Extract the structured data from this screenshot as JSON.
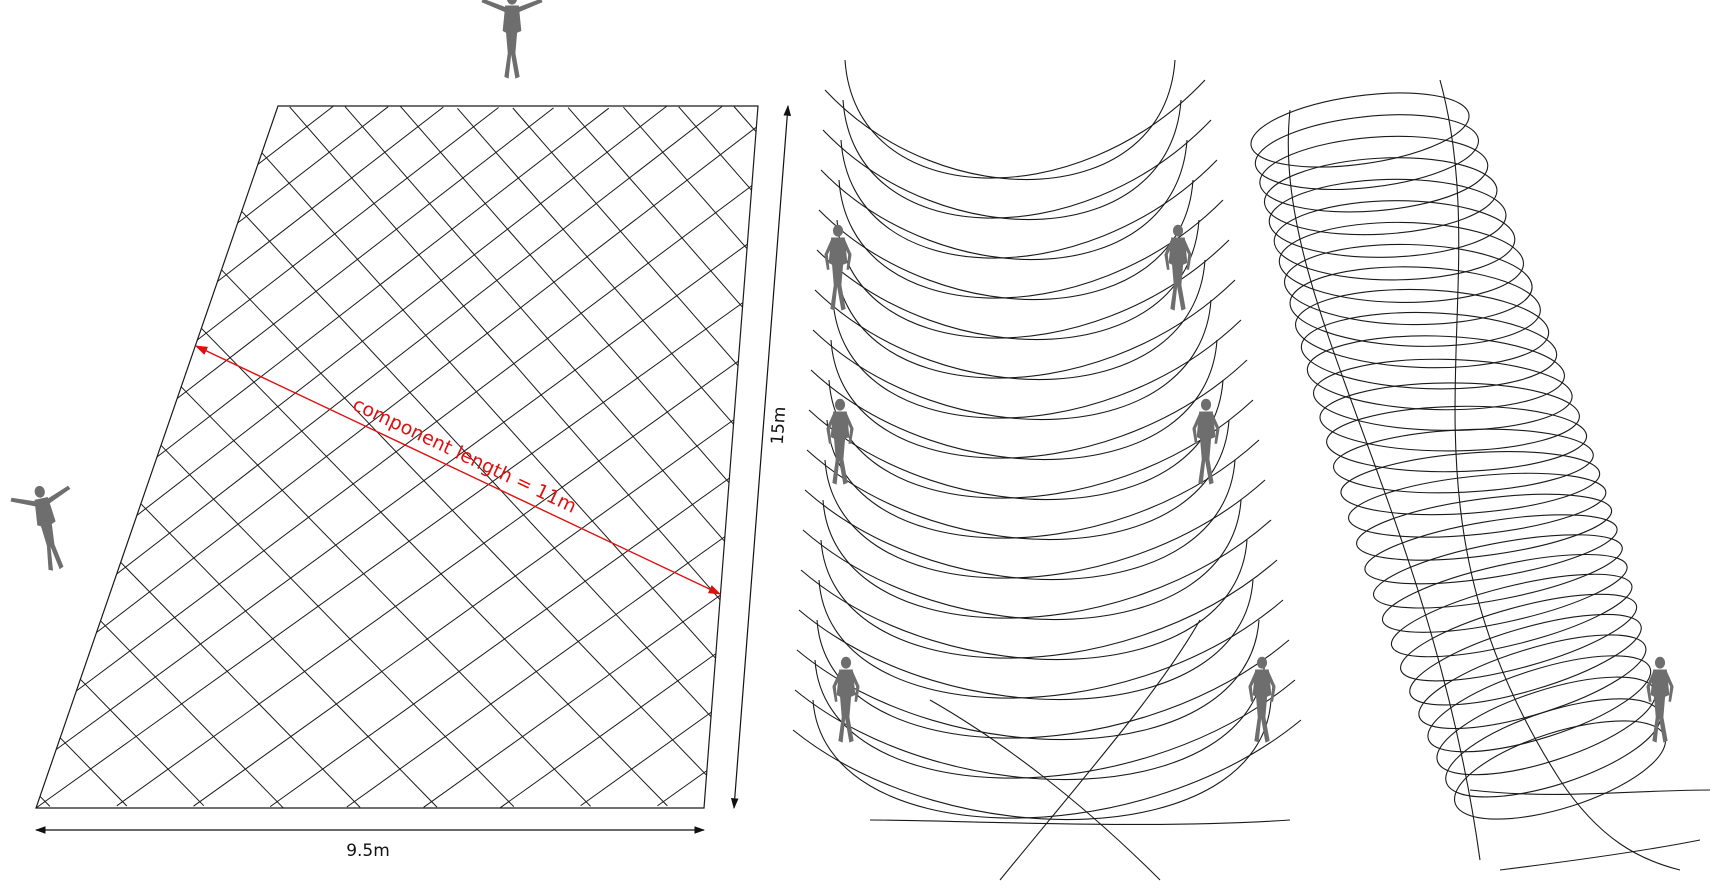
{
  "panels": {
    "flat_grid": {
      "width_label": "9.5m",
      "height_label": "15m",
      "component_label": "component length = 11m",
      "accent_color": "#e01010",
      "line_color": "#1a1a1a"
    },
    "bent_shell": {
      "line_color": "#1a1a1a"
    },
    "twisted_tube": {
      "line_color": "#1a1a1a"
    }
  },
  "human_figures": {
    "icon": "human-scale-figure-icon",
    "fill_color": "#6e6e6e"
  }
}
